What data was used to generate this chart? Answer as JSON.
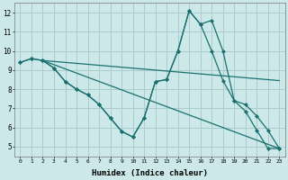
{
  "xlabel": "Humidex (Indice chaleur)",
  "xlim": [
    -0.5,
    23.5
  ],
  "ylim": [
    4.5,
    12.5
  ],
  "yticks": [
    5,
    6,
    7,
    8,
    9,
    10,
    11,
    12
  ],
  "xticks": [
    0,
    1,
    2,
    3,
    4,
    5,
    6,
    7,
    8,
    9,
    10,
    11,
    12,
    13,
    14,
    15,
    16,
    17,
    18,
    19,
    20,
    21,
    22,
    23
  ],
  "background_color": "#cce8e8",
  "grid_color": "#aacccc",
  "line_color": "#1a7070",
  "lines": [
    {
      "x": [
        0,
        1,
        2,
        3,
        4,
        5,
        6,
        7,
        8,
        9,
        10,
        11,
        12,
        13,
        14,
        15,
        16,
        17,
        18,
        19,
        20,
        21,
        22,
        23
      ],
      "y": [
        9.4,
        9.6,
        9.5,
        9.1,
        8.4,
        8.0,
        7.7,
        7.2,
        6.5,
        5.8,
        5.5,
        6.5,
        8.4,
        8.5,
        10.0,
        12.1,
        11.4,
        11.6,
        10.0,
        7.4,
        6.85,
        5.85,
        4.9,
        4.9
      ],
      "markers": true
    },
    {
      "x": [
        2,
        23
      ],
      "y": [
        9.5,
        8.45
      ],
      "markers": false
    },
    {
      "x": [
        2,
        23
      ],
      "y": [
        9.5,
        4.9
      ],
      "markers": false
    },
    {
      "x": [
        0,
        1,
        2,
        3,
        4,
        5,
        6,
        7,
        8,
        9,
        10,
        11,
        12,
        13,
        14,
        15,
        16,
        17,
        18,
        19,
        20,
        21,
        22,
        23
      ],
      "y": [
        9.4,
        9.6,
        9.5,
        9.1,
        8.4,
        8.0,
        7.7,
        7.2,
        6.5,
        5.8,
        5.5,
        6.5,
        8.4,
        8.5,
        10.0,
        12.1,
        11.4,
        10.0,
        8.45,
        7.4,
        7.2,
        6.6,
        5.85,
        4.9
      ],
      "markers": true
    }
  ]
}
